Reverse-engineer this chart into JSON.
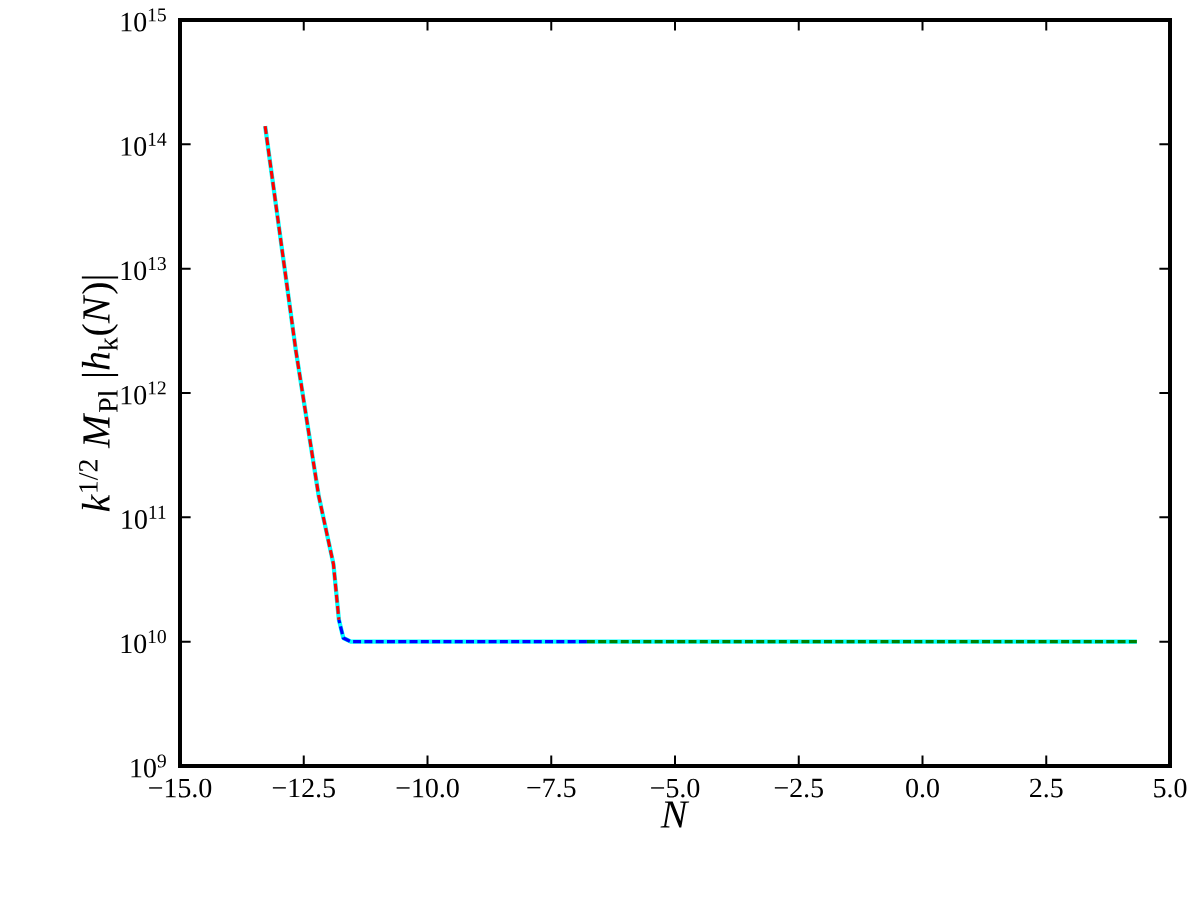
{
  "chart_data": {
    "type": "line",
    "xlabel": "*N*",
    "ylabel": "*k*$^{1/2}$ *M*$_{Pl}$ |*h*$_{k}$(*N*)|",
    "xlim": [
      -15,
      5
    ],
    "ylim": [
      1000000000.0,
      1000000000000000.0
    ],
    "log": "y",
    "xticks": [
      {
        "value": -15,
        "label": "−15.0"
      },
      {
        "value": -12.5,
        "label": "−12.5"
      },
      {
        "value": -10,
        "label": "−10.0"
      },
      {
        "value": -7.5,
        "label": "−7.5"
      },
      {
        "value": -5,
        "label": "−5.0"
      },
      {
        "value": -2.5,
        "label": "−2.5"
      },
      {
        "value": 0,
        "label": "0.0"
      },
      {
        "value": 2.5,
        "label": "2.5"
      },
      {
        "value": 5,
        "label": "5.0"
      }
    ],
    "yticks": [
      {
        "value": 1000000000.0,
        "label": "10$^{9}$"
      },
      {
        "value": 10000000000.0,
        "label": "10$^{10}$"
      },
      {
        "value": 100000000000.0,
        "label": "10$^{11}$"
      },
      {
        "value": 1000000000000.0,
        "label": "10$^{12}$"
      },
      {
        "value": 10000000000000.0,
        "label": "10$^{13}$"
      },
      {
        "value": 100000000000000.0,
        "label": "10$^{14}$"
      },
      {
        "value": 1000000000000000.0,
        "label": "10$^{15}$"
      }
    ],
    "series": [
      {
        "color": "#00ffff",
        "line_style": "solid",
        "x": [
          -13.28,
          -12.66,
          -12.2,
          -11.9,
          -11.79,
          -11.7,
          -11.55,
          -11.3,
          -6.78,
          4.33
        ],
        "values": [
          140000000000000.0,
          2200000000000.0,
          150000000000.0,
          42000000000.0,
          15000000000.0,
          10700000000.0,
          10000000000.0,
          10000000000.0,
          10000000000.0,
          10000000000.0
        ]
      },
      {
        "color": "#ff0000",
        "line_style": "dashed",
        "x": [
          -13.28,
          -12.66,
          -12.2,
          -11.9,
          -11.79
        ],
        "values": [
          140000000000000.0,
          2200000000000.0,
          150000000000.0,
          42000000000.0,
          15000000000.0
        ]
      },
      {
        "color": "#0000ff",
        "line_style": "dashed",
        "x": [
          -11.79,
          -11.7,
          -11.55,
          -11.3,
          -6.78
        ],
        "values": [
          15000000000.0,
          10700000000.0,
          10000000000.0,
          10000000000.0,
          10000000000.0
        ]
      },
      {
        "color": "#008000",
        "line_style": "dashed",
        "x": [
          -6.78,
          4.33
        ],
        "values": [
          10000000000.0,
          10000000000.0
        ]
      }
    ]
  }
}
